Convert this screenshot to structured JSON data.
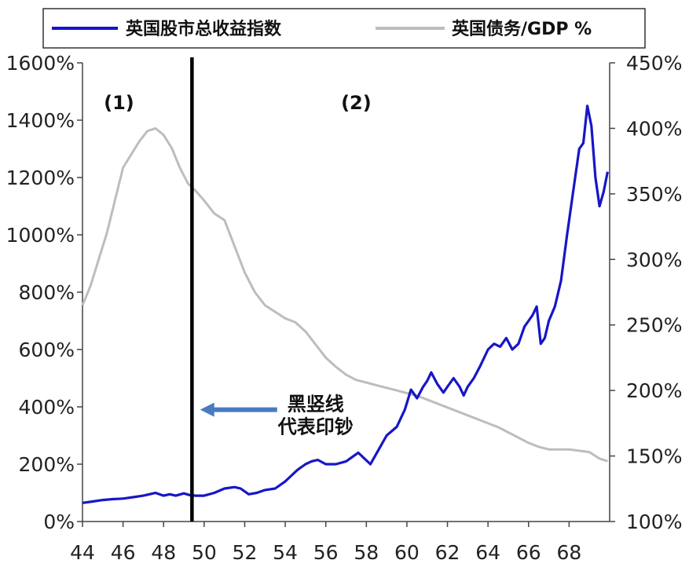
{
  "chart_data": {
    "type": "line",
    "title": "",
    "legend": {
      "placement": "top",
      "entries": [
        {
          "label": "英国股市总收益指数",
          "color": "#1616c8"
        },
        {
          "label": "英国债务/GDP %",
          "color": "#bdbdbd"
        }
      ]
    },
    "x_axis": {
      "label": "",
      "range": [
        1944,
        1970
      ],
      "ticks": [
        "44",
        "46",
        "48",
        "50",
        "52",
        "54",
        "56",
        "58",
        "60",
        "62",
        "64",
        "66",
        "68"
      ],
      "tick_values": [
        1944,
        1946,
        1948,
        1950,
        1952,
        1954,
        1956,
        1958,
        1960,
        1962,
        1964,
        1966,
        1968
      ]
    },
    "y_left": {
      "label": "",
      "range": [
        0,
        1600
      ],
      "ticks": [
        "0%",
        "200%",
        "400%",
        "600%",
        "800%",
        "1000%",
        "1200%",
        "1400%",
        "1600%"
      ],
      "tick_values": [
        0,
        200,
        400,
        600,
        800,
        1000,
        1200,
        1400,
        1600
      ]
    },
    "y_right": {
      "label": "",
      "range": [
        100,
        450
      ],
      "ticks": [
        "100%",
        "150%",
        "200%",
        "250%",
        "300%",
        "350%",
        "400%",
        "450%"
      ],
      "tick_values": [
        100,
        150,
        200,
        250,
        300,
        350,
        400,
        450
      ]
    },
    "series": [
      {
        "name": "英国股市总收益指数",
        "axis": "left",
        "color": "#1616c8",
        "x": [
          1944.0,
          1944.5,
          1945.0,
          1945.5,
          1946.0,
          1946.5,
          1947.0,
          1947.3,
          1947.6,
          1948.0,
          1948.3,
          1948.6,
          1949.0,
          1949.3,
          1949.6,
          1950.0,
          1950.5,
          1951.0,
          1951.5,
          1951.8,
          1952.2,
          1952.6,
          1953.0,
          1953.5,
          1954.0,
          1954.3,
          1954.6,
          1955.0,
          1955.3,
          1955.6,
          1956.0,
          1956.5,
          1957.0,
          1957.3,
          1957.6,
          1957.9,
          1958.2,
          1958.6,
          1959.0,
          1959.5,
          1959.9,
          1960.2,
          1960.5,
          1960.8,
          1961.0,
          1961.2,
          1961.5,
          1961.8,
          1962.0,
          1962.3,
          1962.6,
          1962.8,
          1963.0,
          1963.3,
          1963.6,
          1964.0,
          1964.3,
          1964.6,
          1964.9,
          1965.2,
          1965.5,
          1965.8,
          1966.0,
          1966.2,
          1966.4,
          1966.6,
          1966.8,
          1967.0,
          1967.3,
          1967.6,
          1967.9,
          1968.2,
          1968.5,
          1968.7,
          1968.9,
          1969.1,
          1969.3,
          1969.5,
          1969.7,
          1969.9
        ],
        "values": [
          65,
          70,
          75,
          78,
          80,
          85,
          90,
          95,
          100,
          90,
          95,
          90,
          98,
          92,
          90,
          90,
          100,
          115,
          120,
          115,
          95,
          100,
          110,
          115,
          140,
          160,
          180,
          200,
          210,
          215,
          200,
          200,
          210,
          225,
          240,
          220,
          200,
          250,
          300,
          330,
          390,
          460,
          430,
          470,
          490,
          520,
          480,
          450,
          470,
          500,
          470,
          440,
          470,
          500,
          540,
          600,
          620,
          610,
          640,
          600,
          620,
          680,
          700,
          720,
          750,
          620,
          640,
          700,
          750,
          840,
          1000,
          1150,
          1300,
          1320,
          1450,
          1380,
          1200,
          1100,
          1150,
          1220
        ]
      },
      {
        "name": "英国债务/GDP %",
        "axis": "right",
        "color": "#bdbdbd",
        "x": [
          1944.0,
          1944.4,
          1944.8,
          1945.2,
          1945.6,
          1946.0,
          1946.4,
          1946.8,
          1947.2,
          1947.6,
          1948.0,
          1948.4,
          1948.8,
          1949.2,
          1949.6,
          1950.0,
          1950.5,
          1951.0,
          1951.5,
          1952.0,
          1952.5,
          1953.0,
          1953.5,
          1954.0,
          1954.5,
          1955.0,
          1955.5,
          1956.0,
          1956.5,
          1957.0,
          1957.5,
          1958.0,
          1958.5,
          1959.0,
          1959.5,
          1960.0,
          1960.5,
          1961.0,
          1961.5,
          1962.0,
          1962.5,
          1963.0,
          1963.5,
          1964.0,
          1964.5,
          1965.0,
          1965.5,
          1966.0,
          1966.5,
          1967.0,
          1967.5,
          1968.0,
          1968.5,
          1969.0,
          1969.5,
          1969.9
        ],
        "values": [
          265,
          280,
          300,
          320,
          345,
          370,
          380,
          390,
          398,
          400,
          395,
          385,
          370,
          358,
          352,
          345,
          335,
          330,
          310,
          290,
          275,
          265,
          260,
          255,
          252,
          245,
          235,
          225,
          218,
          212,
          208,
          206,
          204,
          202,
          200,
          198,
          196,
          193,
          190,
          187,
          184,
          181,
          178,
          175,
          172,
          168,
          164,
          160,
          157,
          155,
          155,
          155,
          154,
          153,
          148,
          146
        ]
      }
    ],
    "vertical_line": {
      "x": 1949.4,
      "color": "#000000"
    },
    "annotations": [
      {
        "text": "(1)",
        "x": 1945.8,
        "y": 1460
      },
      {
        "text": "(2)",
        "x": 1957.5,
        "y": 1460
      },
      {
        "text": "黑竖线",
        "x": 1955.5,
        "y": 410
      },
      {
        "text": "代表印钞",
        "x": 1955.5,
        "y": 330
      }
    ],
    "arrow": {
      "from": [
        1953.6,
        390
      ],
      "to": [
        1949.8,
        390
      ],
      "color": "#4a7bc0"
    },
    "grid": false
  }
}
